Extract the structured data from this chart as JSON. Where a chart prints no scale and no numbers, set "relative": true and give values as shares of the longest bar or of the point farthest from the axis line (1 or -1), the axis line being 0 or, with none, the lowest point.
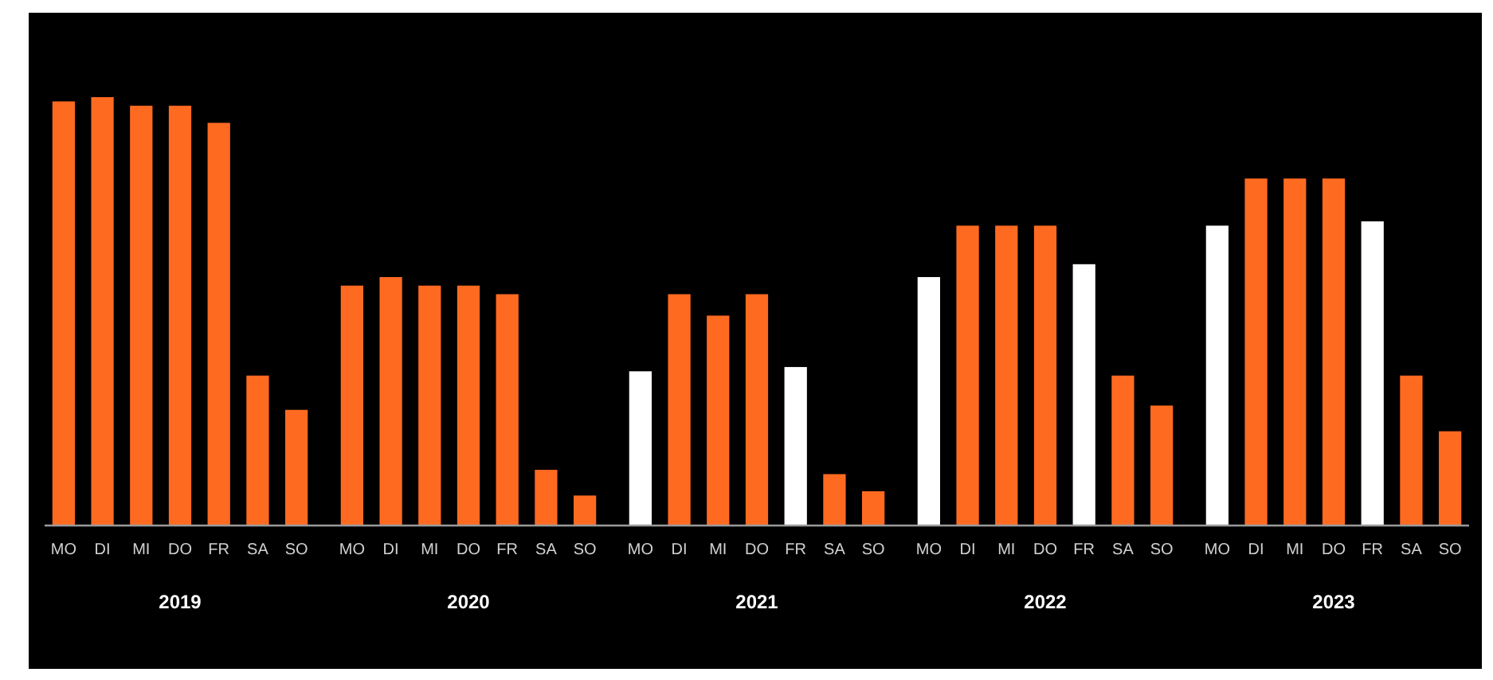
{
  "chart_data": {
    "type": "bar",
    "relative": true,
    "annotations": [
      "2019",
      "2020",
      "2021",
      "2022",
      "2023"
    ],
    "categories": [
      "MO",
      "DI",
      "MI",
      "DO",
      "FR",
      "SA",
      "SO",
      "MO",
      "DI",
      "MI",
      "DO",
      "FR",
      "SA",
      "SO",
      "MO",
      "DI",
      "MI",
      "DO",
      "FR",
      "SA",
      "SO",
      "MO",
      "DI",
      "MI",
      "DO",
      "FR",
      "SA",
      "SO",
      "MO",
      "DI",
      "MI",
      "DO",
      "FR",
      "SA",
      "SO"
    ],
    "values": [
      0.99,
      1,
      0.98,
      0.98,
      0.94,
      0.35,
      0.27,
      0.56,
      0.58,
      0.56,
      0.56,
      0.54,
      0.13,
      0.07,
      0.36,
      0.54,
      0.49,
      0.54,
      0.37,
      0.12,
      0.08,
      0.58,
      0.7,
      0.7,
      0.7,
      0.61,
      0.35,
      0.28,
      0.7,
      0.81,
      0.81,
      0.81,
      0.71,
      0.35,
      0.22
    ],
    "colors": [
      "#ff6a21",
      "#ff6a21",
      "#ff6a21",
      "#ff6a21",
      "#ff6a21",
      "#ff6a21",
      "#ff6a21",
      "#ff6a21",
      "#ff6a21",
      "#ff6a21",
      "#ff6a21",
      "#ff6a21",
      "#ff6a21",
      "#ff6a21",
      "#ffffff",
      "#ff6a21",
      "#ff6a21",
      "#ff6a21",
      "#ffffff",
      "#ff6a21",
      "#ff6a21",
      "#ffffff",
      "#ff6a21",
      "#ff6a21",
      "#ff6a21",
      "#ffffff",
      "#ff6a21",
      "#ff6a21",
      "#ffffff",
      "#ff6a21",
      "#ff6a21",
      "#ff6a21",
      "#ffffff",
      "#ff6a21",
      "#ff6a21"
    ]
  }
}
